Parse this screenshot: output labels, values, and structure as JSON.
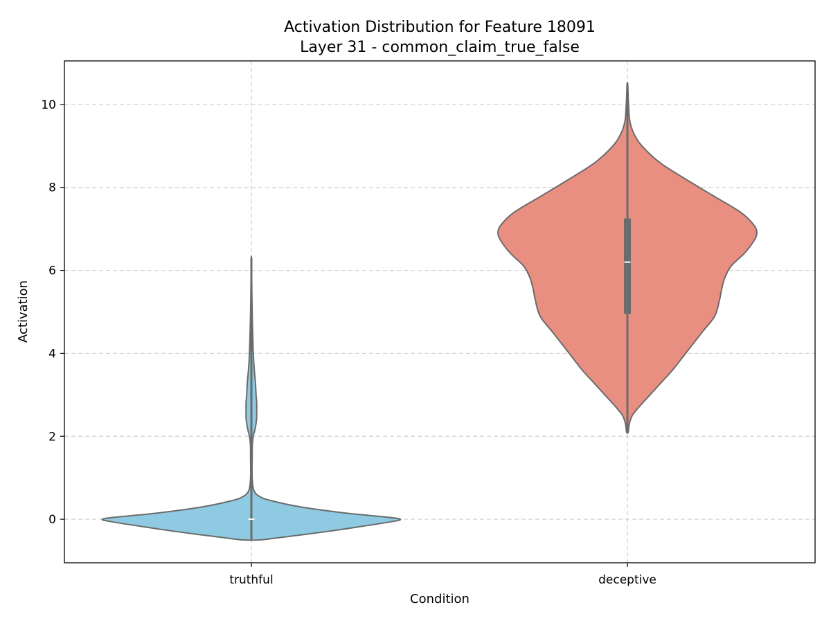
{
  "chart_data": {
    "type": "violin",
    "title": "Activation Distribution for Feature 18091",
    "subtitle": "Layer 31 - common_claim_true_false",
    "xlabel": "Condition",
    "ylabel": "Activation",
    "ylim": [
      -1.05,
      11.05
    ],
    "yticks": [
      0,
      2,
      4,
      6,
      8,
      10
    ],
    "categories": [
      "truthful",
      "deceptive"
    ],
    "grid": true,
    "outline_color": "#6b6b6b",
    "series": [
      {
        "category": "truthful",
        "color": "#8ecae2",
        "median": 0.0,
        "q1": 0.0,
        "q3": 0.0,
        "min": -0.5,
        "max": 6.3,
        "density": [
          [
            -0.5,
            0.05
          ],
          [
            -0.45,
            0.16
          ],
          [
            -0.3,
            0.46
          ],
          [
            -0.15,
            0.72
          ],
          [
            -0.05,
            0.88
          ],
          [
            0.0,
            0.92
          ],
          [
            0.05,
            0.84
          ],
          [
            0.15,
            0.58
          ],
          [
            0.3,
            0.3
          ],
          [
            0.45,
            0.12
          ],
          [
            0.55,
            0.05
          ],
          [
            0.7,
            0.015
          ],
          [
            1.0,
            0.005
          ],
          [
            1.5,
            0.005
          ],
          [
            1.8,
            0.006
          ],
          [
            2.0,
            0.012
          ],
          [
            2.2,
            0.024
          ],
          [
            2.4,
            0.032
          ],
          [
            2.6,
            0.033
          ],
          [
            2.8,
            0.033
          ],
          [
            3.0,
            0.029
          ],
          [
            3.3,
            0.025
          ],
          [
            3.6,
            0.018
          ],
          [
            4.0,
            0.012
          ],
          [
            4.5,
            0.008
          ],
          [
            5.0,
            0.005
          ],
          [
            5.5,
            0.003
          ],
          [
            6.0,
            0.0015
          ],
          [
            6.3,
            0.0005
          ]
        ]
      },
      {
        "category": "deceptive",
        "color": "#e88f82",
        "median": 6.2,
        "q1": 4.95,
        "q3": 7.25,
        "min": 2.1,
        "max": 10.5,
        "density": [
          [
            2.1,
            0.005
          ],
          [
            2.3,
            0.012
          ],
          [
            2.5,
            0.03
          ],
          [
            2.7,
            0.07
          ],
          [
            3.0,
            0.14
          ],
          [
            3.3,
            0.21
          ],
          [
            3.6,
            0.28
          ],
          [
            4.0,
            0.36
          ],
          [
            4.5,
            0.46
          ],
          [
            4.9,
            0.54
          ],
          [
            5.3,
            0.57
          ],
          [
            5.5,
            0.58
          ],
          [
            5.8,
            0.6
          ],
          [
            6.1,
            0.64
          ],
          [
            6.4,
            0.72
          ],
          [
            6.7,
            0.78
          ],
          [
            6.9,
            0.8
          ],
          [
            7.1,
            0.78
          ],
          [
            7.4,
            0.7
          ],
          [
            7.8,
            0.53
          ],
          [
            8.2,
            0.36
          ],
          [
            8.6,
            0.2
          ],
          [
            9.0,
            0.09
          ],
          [
            9.3,
            0.04
          ],
          [
            9.6,
            0.015
          ],
          [
            10.0,
            0.007
          ],
          [
            10.3,
            0.004
          ],
          [
            10.5,
            0.002
          ]
        ]
      }
    ]
  }
}
